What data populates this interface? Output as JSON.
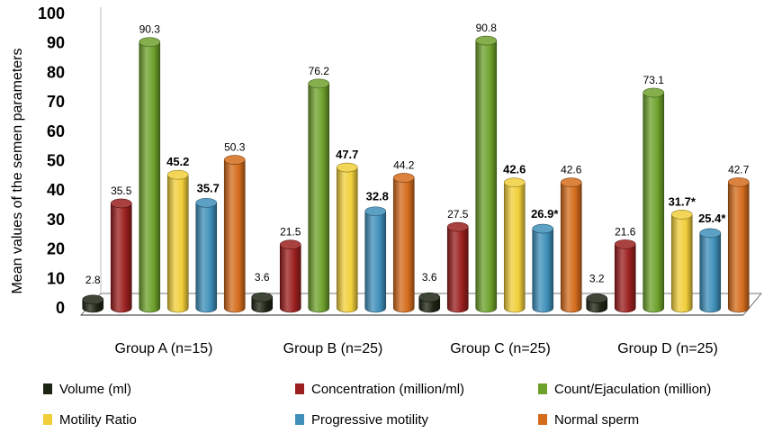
{
  "chart_data": {
    "type": "bar",
    "ylabel": "Mean values  of the semen parameters",
    "ylim": [
      0,
      100
    ],
    "yticks": [
      "0",
      "10",
      "20",
      "30",
      "40",
      "50",
      "60",
      "70",
      "80",
      "90",
      "100"
    ],
    "categories": [
      "Group A (n=15)",
      "Group B (n=25)",
      "Group C (n=25)",
      "Group D (n=25)"
    ],
    "series": [
      {
        "name": "Volume (ml)",
        "color": "#1d2414",
        "values": [
          2.8,
          3.6,
          3.6,
          3.2
        ],
        "labels": [
          "2.8",
          "3.6",
          "3.6",
          "3.2"
        ],
        "bold": [
          false,
          false,
          false,
          false
        ]
      },
      {
        "name": "Concentration (million/ml)",
        "color": "#9b1f1f",
        "values": [
          35.5,
          21.5,
          27.5,
          21.6
        ],
        "labels": [
          "35.5",
          "21.5",
          "27.5",
          "21.6"
        ],
        "bold": [
          false,
          false,
          false,
          false
        ]
      },
      {
        "name": "Count/Ejaculation (million)",
        "color": "#6ea12c",
        "values": [
          90.3,
          76.2,
          90.8,
          73.1
        ],
        "labels": [
          "90.3",
          "76.2",
          "90.8",
          "73.1"
        ],
        "bold": [
          false,
          false,
          false,
          false
        ]
      },
      {
        "name": "Motility Ratio",
        "color": "#f1cf3a",
        "values": [
          45.2,
          47.7,
          42.6,
          31.7
        ],
        "labels": [
          "45.2",
          "47.7",
          "42.6",
          "31.7*"
        ],
        "bold": [
          true,
          true,
          true,
          true
        ]
      },
      {
        "name": "Progressive motility",
        "color": "#3f8fba",
        "values": [
          35.7,
          32.8,
          26.9,
          25.4
        ],
        "labels": [
          "35.7",
          "32.8",
          "26.9*",
          "25.4*"
        ],
        "bold": [
          true,
          true,
          true,
          true
        ]
      },
      {
        "name": "Normal sperm",
        "color": "#d46c1c",
        "values": [
          50.3,
          44.2,
          42.6,
          42.7
        ],
        "labels": [
          "50.3",
          "44.2",
          "42.6",
          "42.7"
        ],
        "bold": [
          false,
          false,
          false,
          false
        ]
      }
    ],
    "legend_position": "bottom",
    "grid": false,
    "style": "3d-cylinder"
  }
}
